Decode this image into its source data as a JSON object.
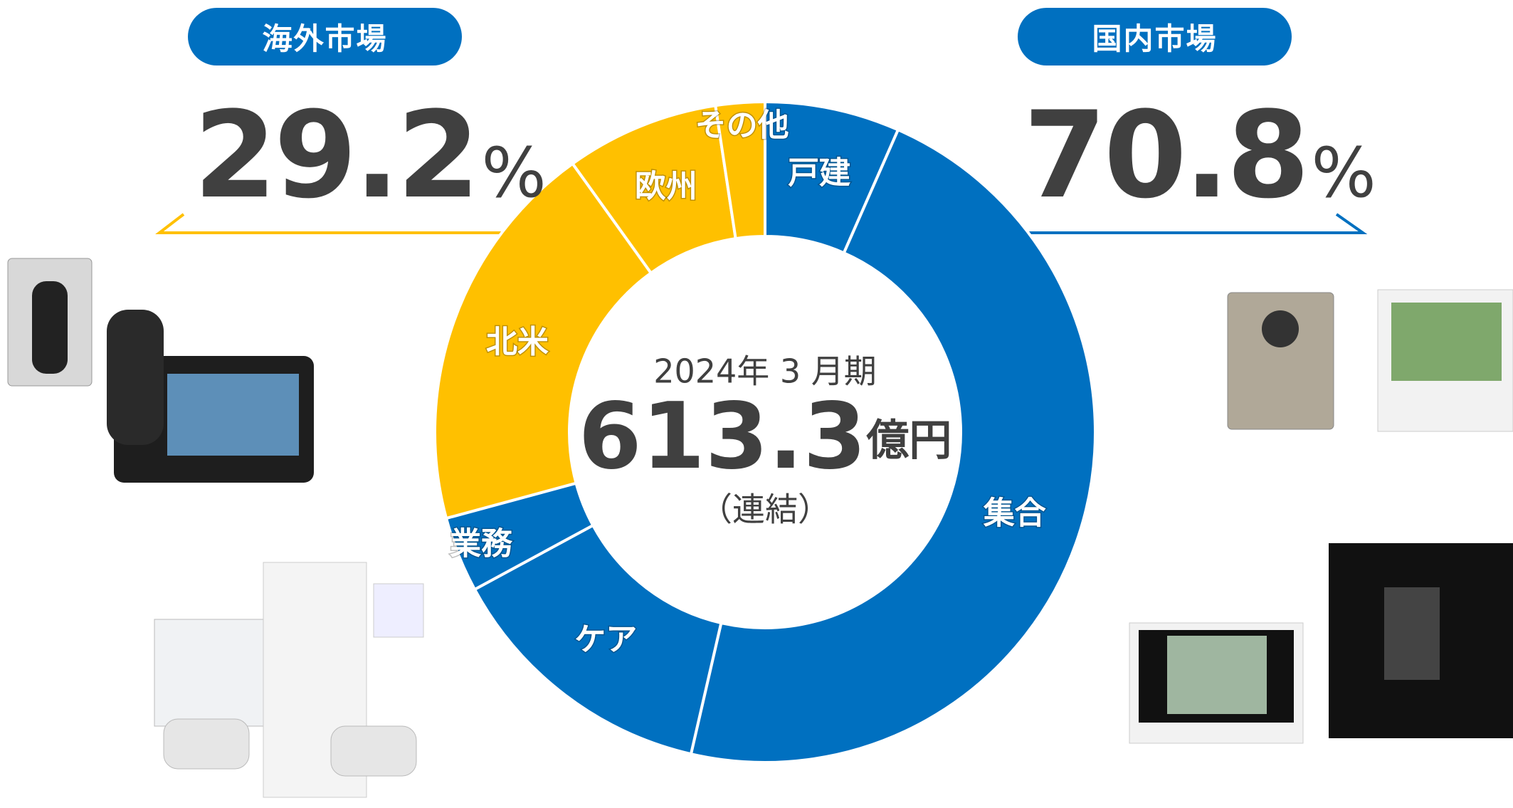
{
  "markets": [
    {
      "label": "海外市場",
      "share": 29.2,
      "unit": "%"
    },
    {
      "label": "国内市場",
      "share": 70.8,
      "unit": "%"
    }
  ],
  "chart_data": {
    "type": "pie",
    "categories": [
      "戸建",
      "集合",
      "ケア",
      "業務",
      "北米",
      "欧州",
      "その他"
    ],
    "values": [
      6.6,
      47.0,
      13.5,
      3.7,
      19.3,
      7.5,
      2.4
    ],
    "colors": [
      "#0070c0",
      "#0070c0",
      "#0070c0",
      "#0070c0",
      "#ffc000",
      "#ffc000",
      "#ffc000"
    ],
    "center": {
      "period": "2024年 3 月期",
      "total": 613.3,
      "unit": "億円",
      "note": "（連結）"
    }
  }
}
